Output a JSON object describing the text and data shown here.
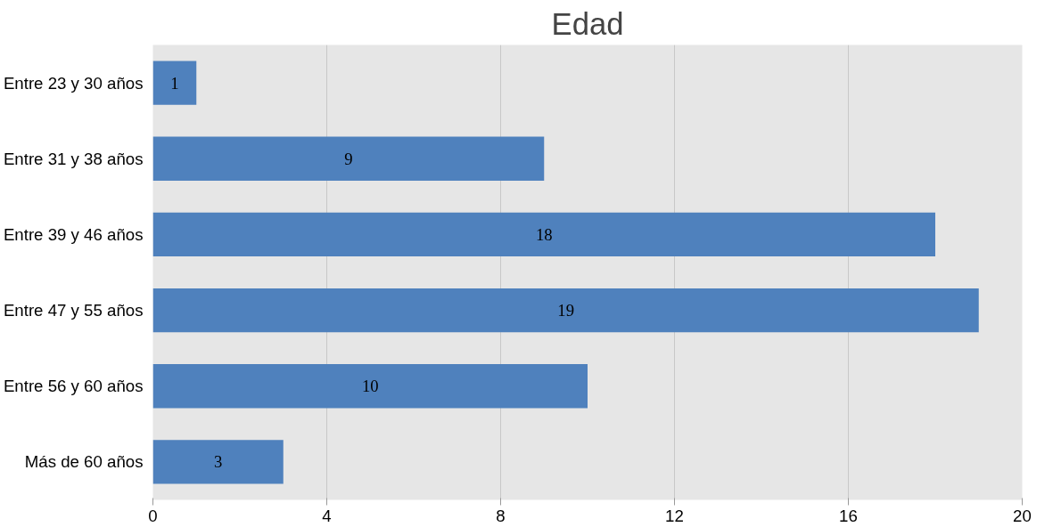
{
  "chart_data": {
    "type": "bar",
    "orientation": "horizontal",
    "title": "Edad",
    "categories": [
      "Entre 23 y 30 años",
      "Entre 31 y 38 años",
      "Entre 39 y 46 años",
      "Entre 47 y 55 años",
      "Entre 56 y 60 años",
      "Más de 60 años"
    ],
    "values": [
      1,
      9,
      18,
      19,
      10,
      3
    ],
    "color": "#4f81bd",
    "xlim": [
      0,
      20
    ],
    "xticks": [
      0,
      4,
      8,
      12,
      16,
      20
    ],
    "grid": "x",
    "data_labels": true
  }
}
